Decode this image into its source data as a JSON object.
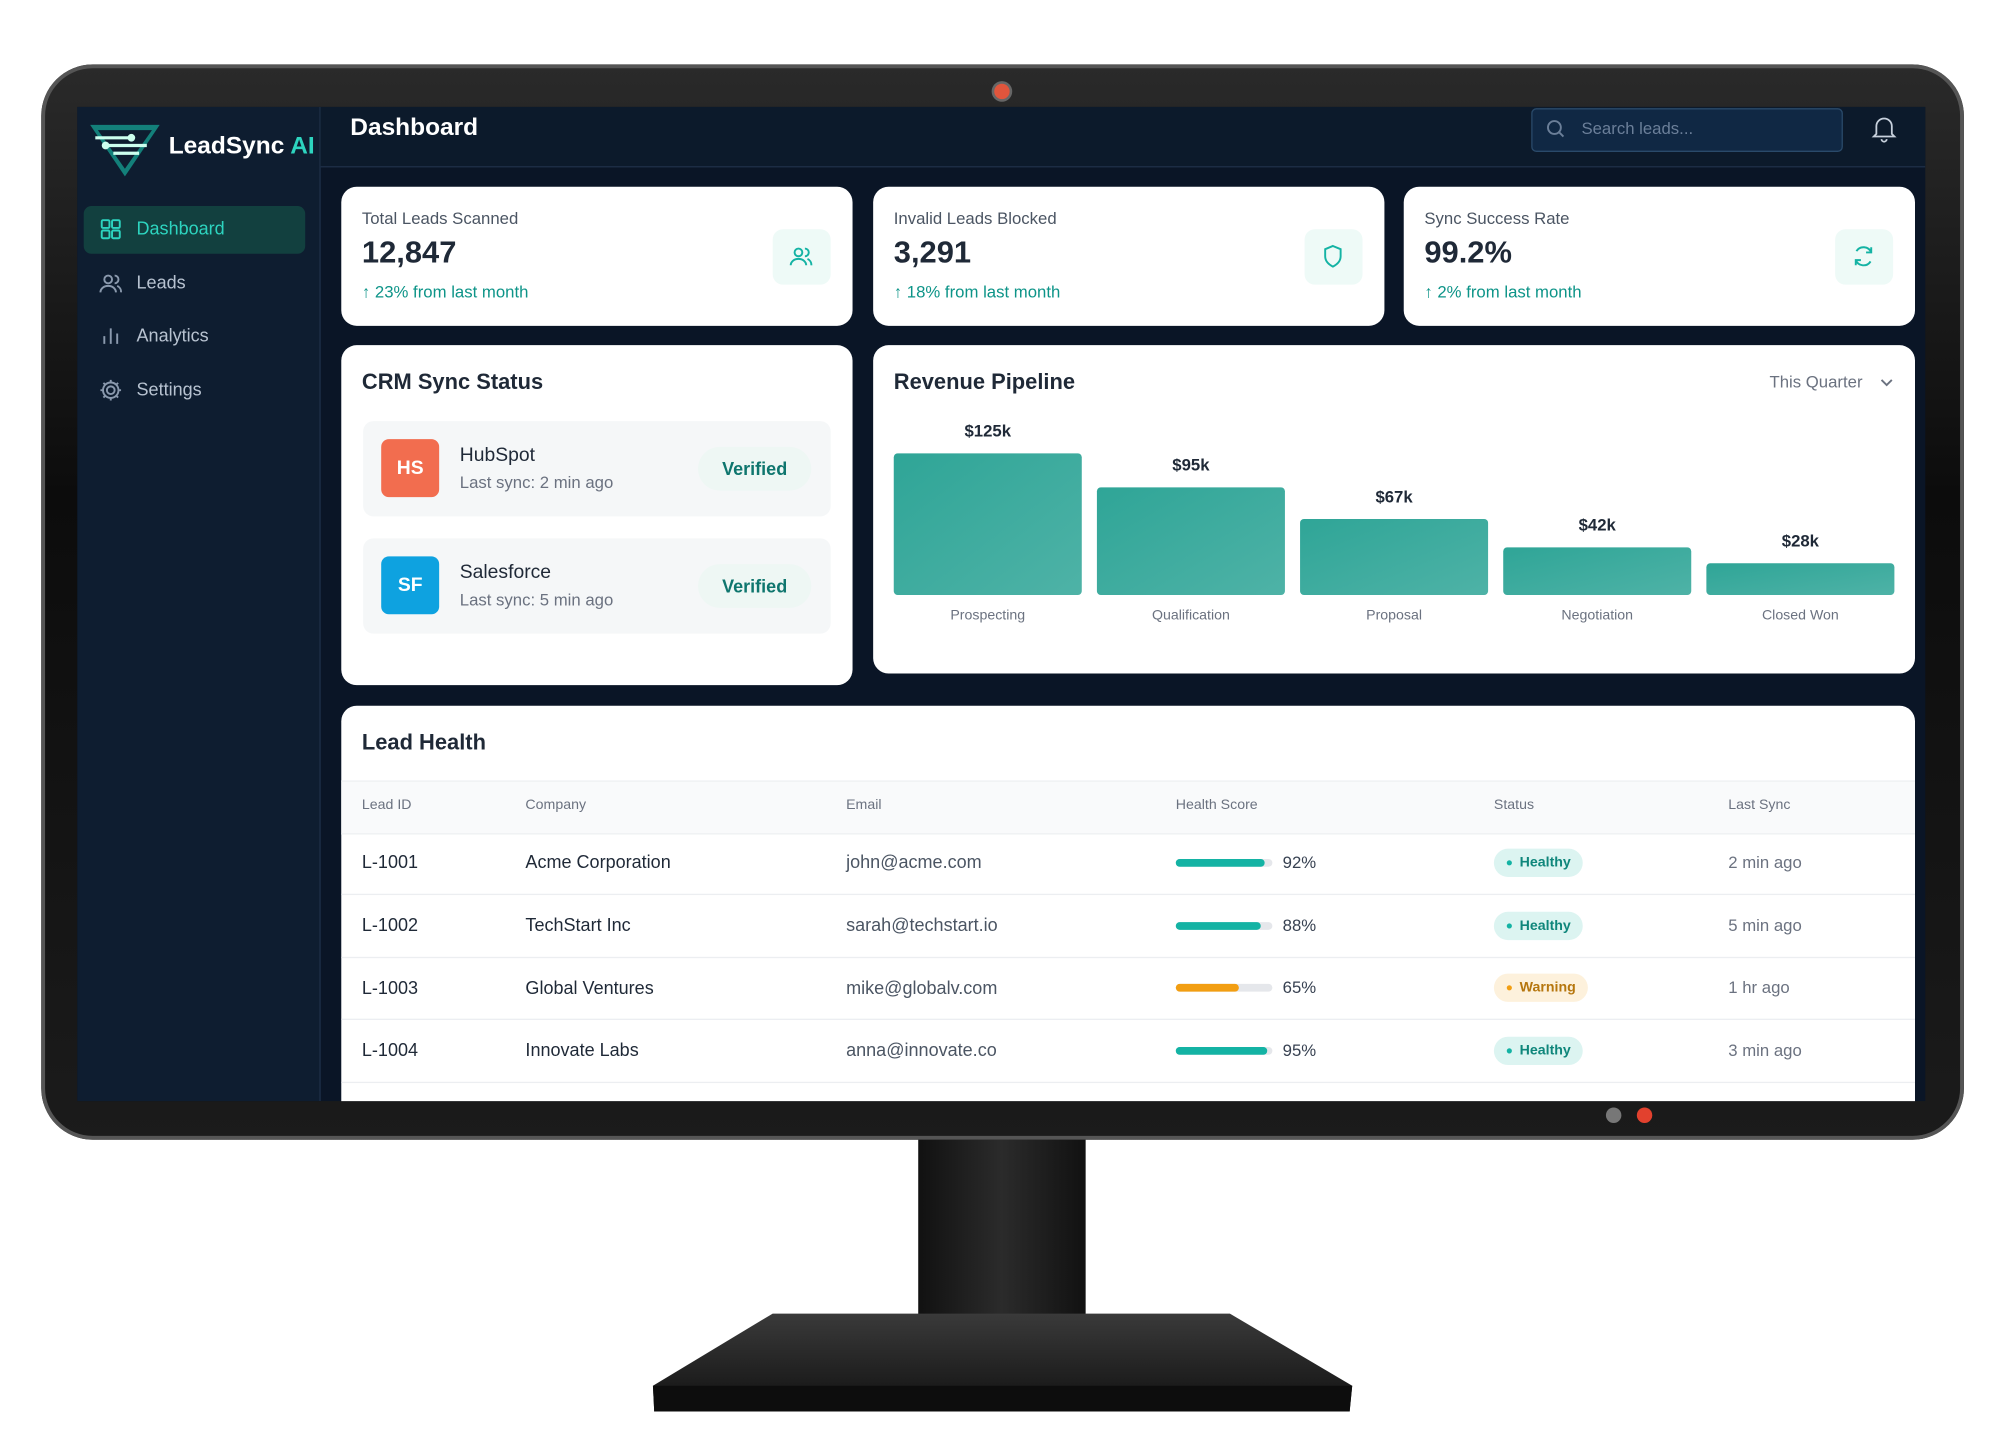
{
  "sidebar": {
    "brand": "LeadSync",
    "brand_accent": "AI",
    "nav": [
      "Dashboard",
      "Leads",
      "Analytics",
      "Settings"
    ]
  },
  "header": {
    "title": "Dashboard",
    "search_placeholder": "Search leads..."
  },
  "stats": [
    {
      "label": "Total Leads Scanned",
      "value": "12,847",
      "change": "↑ 23% from last month"
    },
    {
      "label": "Invalid Leads Blocked",
      "value": "3,291",
      "change": "↑ 18% from last month"
    },
    {
      "label": "Sync Success Rate",
      "value": "99.2%",
      "change": "↑ 2% from last month"
    }
  ],
  "crm": {
    "title": "CRM Sync Status",
    "items": [
      {
        "badge": "HS",
        "color": "#f26d4f",
        "name": "HubSpot",
        "last_sync": "Last sync: 2 min ago",
        "status": "Verified"
      },
      {
        "badge": "SF",
        "color": "#0ea2e0",
        "name": "Salesforce",
        "last_sync": "Last sync: 5 min ago",
        "status": "Verified"
      }
    ]
  },
  "chart_data": {
    "type": "bar",
    "title": "Revenue Pipeline",
    "period": "This Quarter",
    "categories": [
      "Prospecting",
      "Qualification",
      "Proposal",
      "Negotiation",
      "Closed Won"
    ],
    "values": [
      125,
      95,
      67,
      42,
      28
    ],
    "value_labels": [
      "$125k",
      "$95k",
      "$67k",
      "$42k",
      "$28k"
    ],
    "color": "#2fa597"
  },
  "lead_health": {
    "title": "Lead Health",
    "columns": [
      "Lead ID",
      "Company",
      "Email",
      "Health Score",
      "Status",
      "Last Sync"
    ],
    "rows": [
      {
        "id": "L-1001",
        "company": "Acme Corporation",
        "email": "john@acme.com",
        "health": 92,
        "health_label": "92%",
        "color": "#14b3a4",
        "status": "Healthy",
        "last_sync": "2 min ago"
      },
      {
        "id": "L-1002",
        "company": "TechStart Inc",
        "email": "sarah@techstart.io",
        "health": 88,
        "health_label": "88%",
        "color": "#14b3a4",
        "status": "Healthy",
        "last_sync": "5 min ago"
      },
      {
        "id": "L-1003",
        "company": "Global Ventures",
        "email": "mike@globalv.com",
        "health": 65,
        "health_label": "65%",
        "color": "#f29e12",
        "status": "Warning",
        "last_sync": "1 hr ago"
      },
      {
        "id": "L-1004",
        "company": "Innovate Labs",
        "email": "anna@innovate.co",
        "health": 95,
        "health_label": "95%",
        "color": "#14b3a4",
        "status": "Healthy",
        "last_sync": "3 min ago"
      }
    ]
  }
}
